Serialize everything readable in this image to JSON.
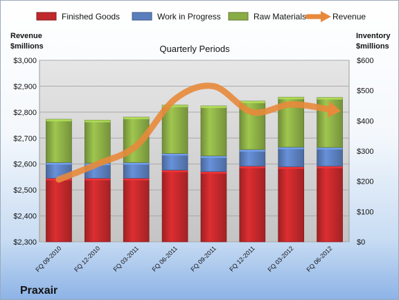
{
  "chart_data": {
    "type": "bar",
    "title": "Quarterly Periods",
    "company": "Praxair",
    "left_axis_label_line1": "Revenue",
    "left_axis_label_line2": "$millions",
    "right_axis_label_line1": "Inventory",
    "right_axis_label_line2": "$millions",
    "categories": [
      "FQ 09-2010",
      "FQ 12-2010",
      "FQ 03-2011",
      "FQ 06-2011",
      "FQ 09-2011",
      "FQ 12-2011",
      "FQ 03-2012",
      "FQ 06-2012"
    ],
    "left_axis": {
      "min": 2300,
      "max": 3000,
      "ticks": [
        2300,
        2400,
        2500,
        2600,
        2700,
        2800,
        2900,
        3000
      ],
      "tick_labels": [
        "$2,300",
        "$2,400",
        "$2,500",
        "$2,600",
        "$2,700",
        "$2,800",
        "$2,900",
        "$3,000"
      ]
    },
    "right_axis": {
      "min": 0,
      "max": 600,
      "ticks": [
        0,
        100,
        200,
        300,
        400,
        500,
        600
      ],
      "tick_labels": [
        "$0",
        "$100",
        "$200",
        "$300",
        "$400",
        "$500",
        "$600"
      ]
    },
    "stacked_series": [
      {
        "name": "Finished Goods",
        "axis": "right",
        "color": "#c0282b",
        "values": [
          210,
          210,
          210,
          237,
          232,
          250,
          248,
          250
        ]
      },
      {
        "name": "Work in Progress",
        "axis": "right",
        "color": "#5a7ebd",
        "values": [
          52,
          50,
          52,
          55,
          52,
          55,
          65,
          62
        ]
      },
      {
        "name": "Raw Materials",
        "axis": "right",
        "color": "#8aac45",
        "values": [
          143,
          142,
          150,
          160,
          165,
          160,
          165,
          165
        ]
      }
    ],
    "line_series": {
      "name": "Revenue",
      "axis": "left",
      "color": "#e8893b",
      "values": [
        2540,
        2600,
        2670,
        2850,
        2900,
        2800,
        2830,
        2810
      ]
    },
    "grid": true,
    "legend_position": "top"
  }
}
